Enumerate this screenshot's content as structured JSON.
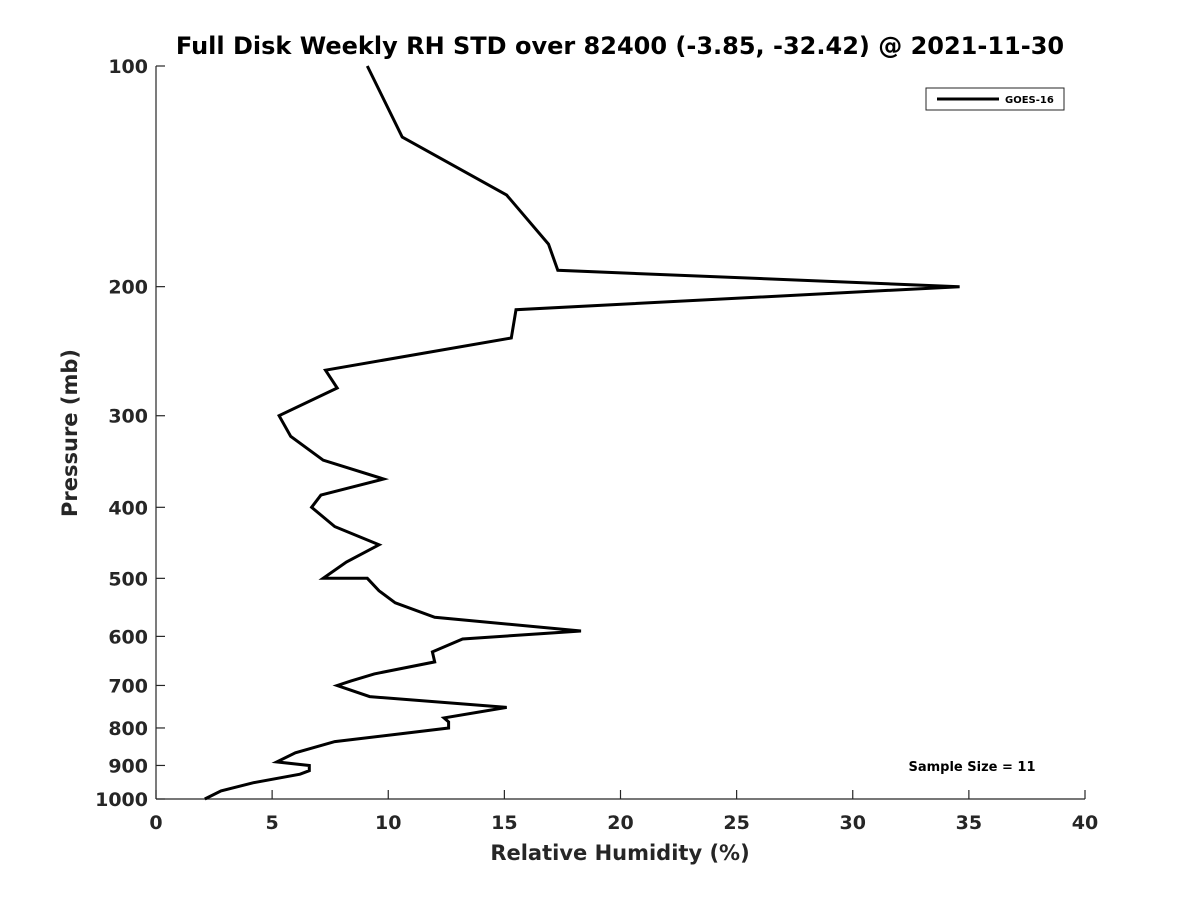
{
  "chart_data": {
    "type": "line",
    "title": "Full Disk Weekly RH STD over 82400 (-3.85, -32.42) @ 2021-11-30",
    "xlabel": "Relative Humidity (%)",
    "ylabel": "Pressure (mb)",
    "xlim": [
      0,
      40
    ],
    "ylim": [
      100,
      1000
    ],
    "yscale": "log",
    "y_reversed": true,
    "grid": false,
    "legend_position": "top-right",
    "x_ticks": [
      0,
      5,
      10,
      15,
      20,
      25,
      30,
      35,
      40
    ],
    "y_ticks": [
      100,
      200,
      300,
      400,
      500,
      600,
      700,
      800,
      900,
      1000
    ],
    "series": [
      {
        "name": "GOES-16",
        "color": "#000000",
        "points": [
          [
            9.1,
            100
          ],
          [
            10.6,
            125
          ],
          [
            15.1,
            150
          ],
          [
            16.9,
            175
          ],
          [
            17.3,
            190
          ],
          [
            34.6,
            200
          ],
          [
            15.5,
            215
          ],
          [
            15.3,
            235
          ],
          [
            7.3,
            260
          ],
          [
            7.8,
            275
          ],
          [
            5.3,
            300
          ],
          [
            5.8,
            320
          ],
          [
            7.2,
            345
          ],
          [
            9.8,
            366
          ],
          [
            7.1,
            385
          ],
          [
            6.7,
            400
          ],
          [
            7.7,
            425
          ],
          [
            9.6,
            450
          ],
          [
            8.2,
            475
          ],
          [
            7.2,
            500
          ],
          [
            9.1,
            500
          ],
          [
            9.6,
            520
          ],
          [
            10.3,
            540
          ],
          [
            12.0,
            565
          ],
          [
            18.3,
            590
          ],
          [
            13.2,
            605
          ],
          [
            11.9,
            630
          ],
          [
            12.0,
            650
          ],
          [
            9.4,
            675
          ],
          [
            8.4,
            690
          ],
          [
            7.8,
            700
          ],
          [
            9.2,
            725
          ],
          [
            15.1,
            750
          ],
          [
            12.4,
            775
          ],
          [
            12.6,
            785
          ],
          [
            12.6,
            800
          ],
          [
            10.5,
            815
          ],
          [
            7.7,
            835
          ],
          [
            6.0,
            865
          ],
          [
            5.2,
            890
          ],
          [
            6.6,
            900
          ],
          [
            6.6,
            915
          ],
          [
            6.2,
            925
          ],
          [
            4.2,
            950
          ],
          [
            2.8,
            975
          ],
          [
            2.1,
            1000
          ]
        ]
      }
    ],
    "annotation": "Sample Size = 11"
  }
}
